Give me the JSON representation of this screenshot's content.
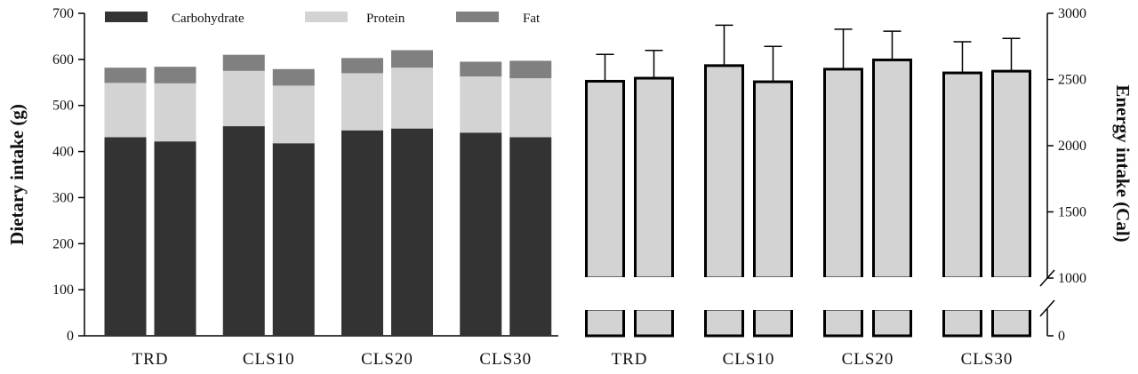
{
  "chart_data": [
    {
      "type": "bar",
      "stacked": true,
      "ylabel": "Dietary intake (g)",
      "ylim": [
        0,
        700
      ],
      "yticks": [
        0,
        100,
        200,
        300,
        400,
        500,
        600,
        700
      ],
      "groups": [
        "TRD",
        "CLS10",
        "CLS20",
        "CLS30"
      ],
      "bars_per_group": 2,
      "legend_position": "top",
      "series": [
        {
          "name": "Carbohydrate",
          "color": "#333333",
          "values": [
            431,
            422,
            455,
            418,
            446,
            450,
            441,
            431
          ]
        },
        {
          "name": "Protein",
          "color": "#d3d3d3",
          "values": [
            118,
            126,
            120,
            125,
            124,
            132,
            122,
            128
          ]
        },
        {
          "name": "Fat",
          "color": "#808080",
          "values": [
            33,
            36,
            35,
            36,
            33,
            38,
            32,
            38
          ]
        }
      ]
    },
    {
      "type": "bar",
      "ylabel": "Energy intake (Cal)",
      "axis_break": [
        0,
        1000
      ],
      "yticks": [
        0,
        1000,
        1500,
        2000,
        2500,
        3000
      ],
      "ylim": [
        1000,
        3000
      ],
      "groups": [
        "TRD",
        "CLS10",
        "CLS20",
        "CLS30"
      ],
      "bars_per_group": 2,
      "color": "#d3d3d3",
      "values": [
        2487,
        2510,
        2605,
        2483,
        2578,
        2648,
        2550,
        2563
      ],
      "error_upper": [
        2690,
        2720,
        2910,
        2750,
        2880,
        2865,
        2785,
        2810
      ]
    }
  ]
}
